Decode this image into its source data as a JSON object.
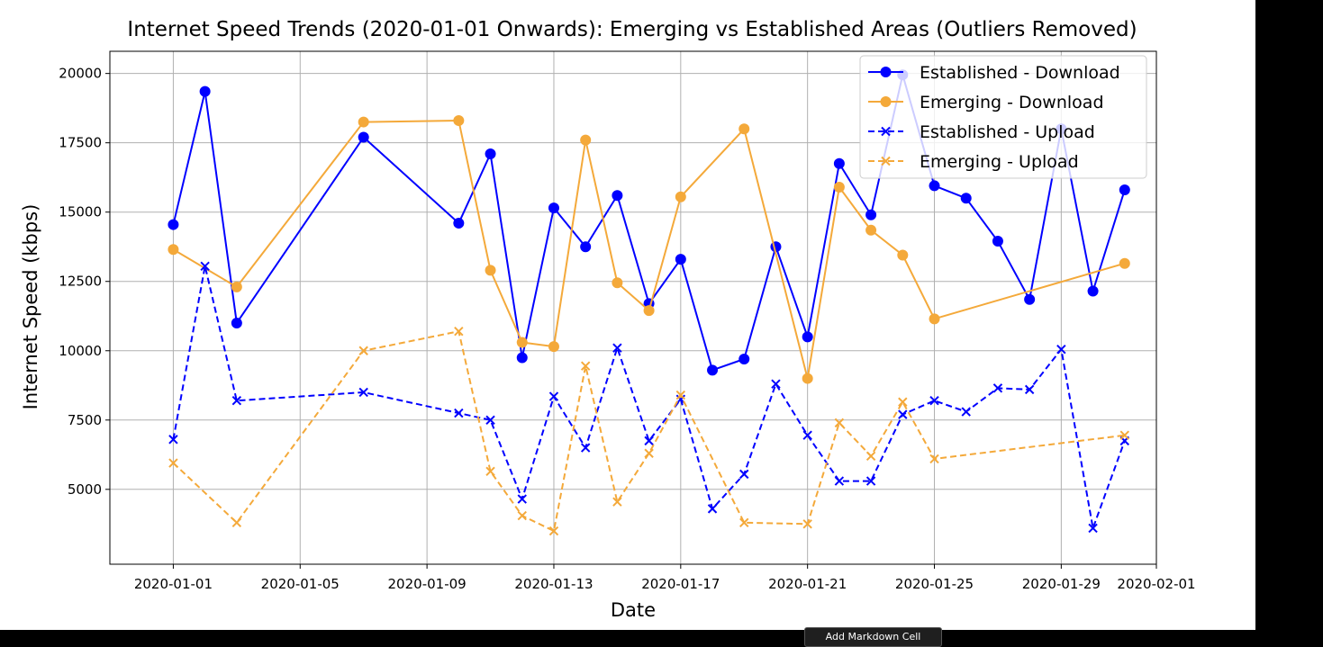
{
  "chart_data": {
    "type": "line",
    "title": "Internet Speed Trends (2020-01-01 Onwards): Emerging vs Established Areas (Outliers Removed)",
    "xlabel": "Date",
    "ylabel": "Internet Speed (kbps)",
    "xlim": [
      "2019-12-30",
      "2020-02-01"
    ],
    "ylim": [
      2300,
      20800
    ],
    "x_ticks": [
      "2020-01-01",
      "2020-01-05",
      "2020-01-09",
      "2020-01-13",
      "2020-01-17",
      "2020-01-21",
      "2020-01-25",
      "2020-01-29",
      "2020-02-01"
    ],
    "y_ticks": [
      5000,
      7500,
      10000,
      12500,
      15000,
      17500,
      20000
    ],
    "grid": true,
    "legend_position": "top-right",
    "series": [
      {
        "name": "Established - Download",
        "color": "#0000ff",
        "style": "solid",
        "marker": "circle",
        "points": [
          [
            "2020-01-01",
            14550
          ],
          [
            "2020-01-02",
            19350
          ],
          [
            "2020-01-03",
            11000
          ],
          [
            "2020-01-07",
            17700
          ],
          [
            "2020-01-10",
            14600
          ],
          [
            "2020-01-11",
            17100
          ],
          [
            "2020-01-12",
            9750
          ],
          [
            "2020-01-13",
            15150
          ],
          [
            "2020-01-14",
            13750
          ],
          [
            "2020-01-15",
            15600
          ],
          [
            "2020-01-16",
            11700
          ],
          [
            "2020-01-17",
            13300
          ],
          [
            "2020-01-18",
            9300
          ],
          [
            "2020-01-19",
            9700
          ],
          [
            "2020-01-20",
            13750
          ],
          [
            "2020-01-21",
            10500
          ],
          [
            "2020-01-22",
            16750
          ],
          [
            "2020-01-23",
            14900
          ],
          [
            "2020-01-24",
            19950
          ],
          [
            "2020-01-25",
            15950
          ],
          [
            "2020-01-26",
            15500
          ],
          [
            "2020-01-27",
            13950
          ],
          [
            "2020-01-28",
            11850
          ],
          [
            "2020-01-29",
            18000
          ],
          [
            "2020-01-30",
            12150
          ],
          [
            "2020-01-31",
            15800
          ]
        ]
      },
      {
        "name": "Emerging - Download",
        "color": "#f4a93a",
        "style": "solid",
        "marker": "circle",
        "points": [
          [
            "2020-01-01",
            13650
          ],
          [
            "2020-01-03",
            12300
          ],
          [
            "2020-01-07",
            18250
          ],
          [
            "2020-01-10",
            18300
          ],
          [
            "2020-01-11",
            12900
          ],
          [
            "2020-01-12",
            10300
          ],
          [
            "2020-01-13",
            10150
          ],
          [
            "2020-01-14",
            17600
          ],
          [
            "2020-01-15",
            12450
          ],
          [
            "2020-01-16",
            11450
          ],
          [
            "2020-01-17",
            15550
          ],
          [
            "2020-01-19",
            18000
          ],
          [
            "2020-01-21",
            9000
          ],
          [
            "2020-01-22",
            15900
          ],
          [
            "2020-01-23",
            14350
          ],
          [
            "2020-01-24",
            13450
          ],
          [
            "2020-01-25",
            11150
          ],
          [
            "2020-01-31",
            13150
          ]
        ]
      },
      {
        "name": "Established - Upload",
        "color": "#0000ff",
        "style": "dashed",
        "marker": "x",
        "points": [
          [
            "2020-01-01",
            6800
          ],
          [
            "2020-01-02",
            13050
          ],
          [
            "2020-01-03",
            8200
          ],
          [
            "2020-01-07",
            8500
          ],
          [
            "2020-01-10",
            7750
          ],
          [
            "2020-01-11",
            7500
          ],
          [
            "2020-01-12",
            4650
          ],
          [
            "2020-01-13",
            8350
          ],
          [
            "2020-01-14",
            6500
          ],
          [
            "2020-01-15",
            10100
          ],
          [
            "2020-01-16",
            6750
          ],
          [
            "2020-01-17",
            8250
          ],
          [
            "2020-01-18",
            4300
          ],
          [
            "2020-01-19",
            5550
          ],
          [
            "2020-01-20",
            8800
          ],
          [
            "2020-01-21",
            6950
          ],
          [
            "2020-01-22",
            5300
          ],
          [
            "2020-01-23",
            5300
          ],
          [
            "2020-01-24",
            7700
          ],
          [
            "2020-01-25",
            8200
          ],
          [
            "2020-01-26",
            7800
          ],
          [
            "2020-01-27",
            8650
          ],
          [
            "2020-01-28",
            8600
          ],
          [
            "2020-01-29",
            10050
          ],
          [
            "2020-01-30",
            3600
          ],
          [
            "2020-01-31",
            6750
          ]
        ]
      },
      {
        "name": "Emerging - Upload",
        "color": "#f4a93a",
        "style": "dashed",
        "marker": "x",
        "points": [
          [
            "2020-01-01",
            5950
          ],
          [
            "2020-01-03",
            3800
          ],
          [
            "2020-01-07",
            10000
          ],
          [
            "2020-01-10",
            10700
          ],
          [
            "2020-01-11",
            5650
          ],
          [
            "2020-01-12",
            4050
          ],
          [
            "2020-01-13",
            3500
          ],
          [
            "2020-01-14",
            9450
          ],
          [
            "2020-01-15",
            4550
          ],
          [
            "2020-01-16",
            6300
          ],
          [
            "2020-01-17",
            8400
          ],
          [
            "2020-01-19",
            3800
          ],
          [
            "2020-01-21",
            3750
          ],
          [
            "2020-01-22",
            7400
          ],
          [
            "2020-01-23",
            6200
          ],
          [
            "2020-01-24",
            8150
          ],
          [
            "2020-01-25",
            6100
          ],
          [
            "2020-01-31",
            6950
          ]
        ]
      }
    ]
  },
  "overlay": {
    "tooltip_label": "Add Markdown Cell"
  }
}
